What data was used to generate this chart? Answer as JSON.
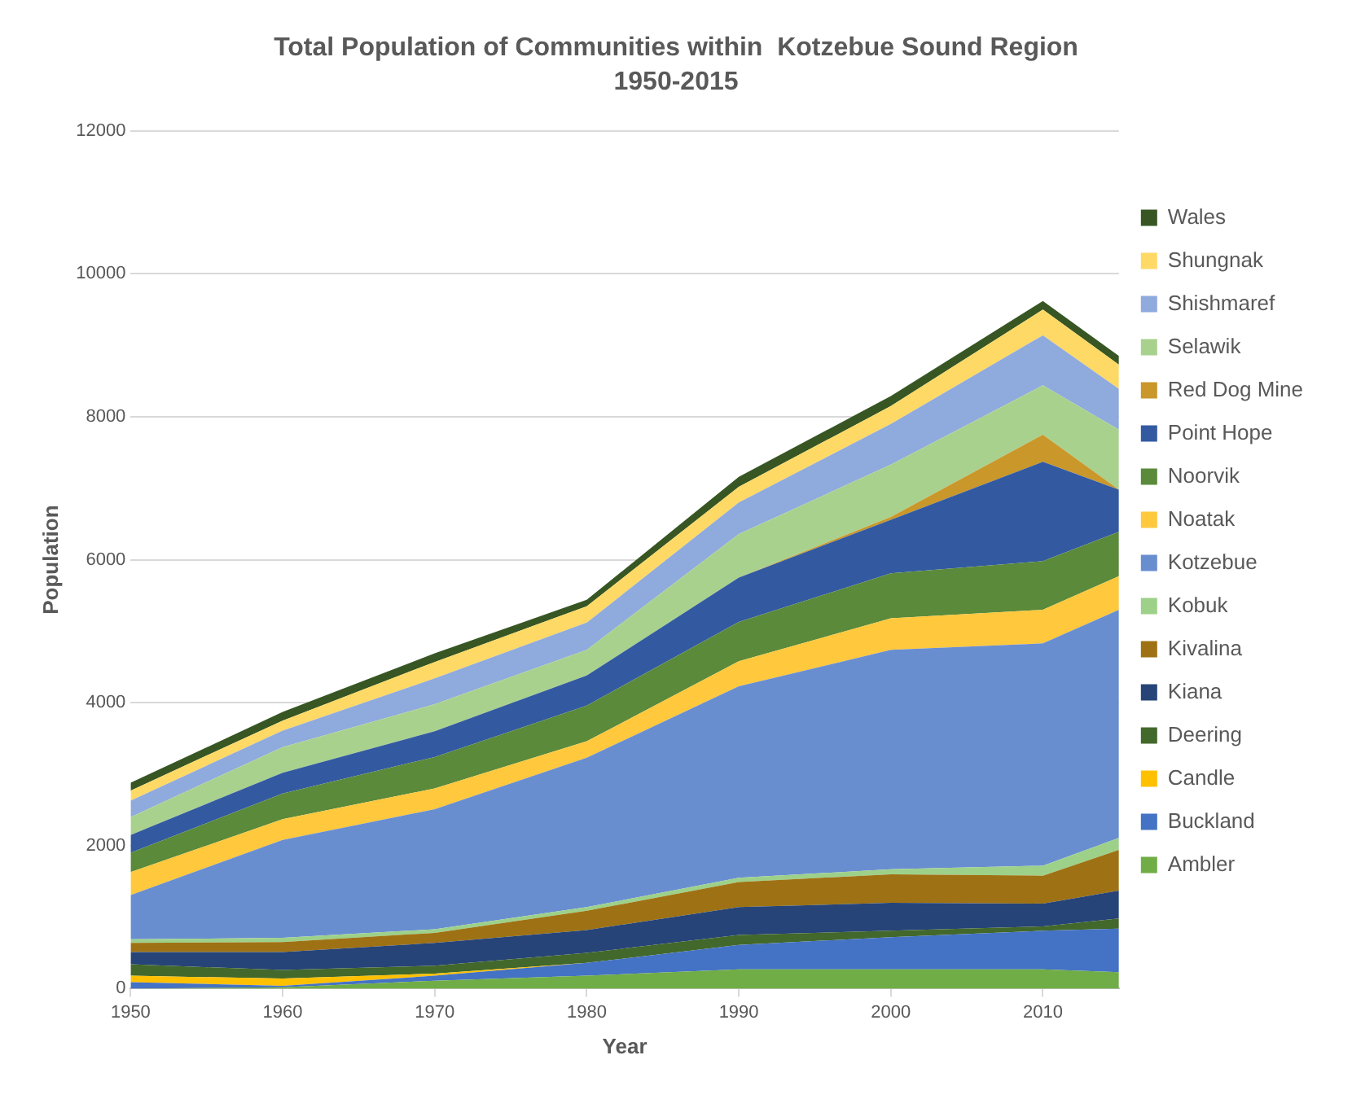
{
  "chart_data": {
    "type": "area",
    "title": "Total Population of Communities within  Kotzebue Sound Region",
    "subtitle": "1950-2015",
    "xlabel": "Year",
    "ylabel": "Population",
    "x": [
      1950,
      1960,
      1970,
      1980,
      1990,
      2000,
      2010,
      2015
    ],
    "xlim": [
      1950,
      2015
    ],
    "xticks": [
      1950,
      1960,
      1970,
      1980,
      1990,
      2000,
      2010
    ],
    "ylim": [
      0,
      12000
    ],
    "yticks": [
      0,
      2000,
      4000,
      6000,
      8000,
      10000,
      12000
    ],
    "stacked": true,
    "grid": "y",
    "legend": "right",
    "marker": "none",
    "series": [
      {
        "name": "Ambler",
        "color": "#70ad47",
        "values": [
          0,
          20,
          110,
          180,
          270,
          270,
          270,
          230
        ]
      },
      {
        "name": "Buckland",
        "color": "#4472c4",
        "values": [
          90,
          20,
          70,
          180,
          340,
          450,
          540,
          610
        ]
      },
      {
        "name": "Candle",
        "color": "#ffc000",
        "values": [
          90,
          100,
          30,
          0,
          0,
          0,
          0,
          0
        ]
      },
      {
        "name": "Deering",
        "color": "#43682b",
        "values": [
          160,
          120,
          110,
          140,
          140,
          90,
          60,
          140
        ]
      },
      {
        "name": "Kiana",
        "color": "#264478",
        "values": [
          170,
          250,
          320,
          320,
          390,
          390,
          320,
          390
        ]
      },
      {
        "name": "Kivalina",
        "color": "#9e7214",
        "values": [
          130,
          140,
          140,
          270,
          350,
          400,
          390,
          570
        ]
      },
      {
        "name": "Kobuk",
        "color": "#9dd18a",
        "values": [
          50,
          60,
          50,
          50,
          60,
          70,
          140,
          170
        ]
      },
      {
        "name": "Kotzebue",
        "color": "#698ed0",
        "values": [
          620,
          1370,
          1680,
          2090,
          2680,
          3070,
          3110,
          3190
        ]
      },
      {
        "name": "Noatak",
        "color": "#ffc83d",
        "values": [
          320,
          290,
          290,
          230,
          350,
          440,
          470,
          470
        ]
      },
      {
        "name": "Noorvik",
        "color": "#5a8a3a",
        "values": [
          270,
          360,
          440,
          500,
          550,
          630,
          680,
          620
        ]
      },
      {
        "name": "Point Hope",
        "color": "#335aa1",
        "values": [
          250,
          290,
          360,
          420,
          620,
          750,
          1390,
          590
        ]
      },
      {
        "name": "Red Dog Mine",
        "color": "#c9972a",
        "values": [
          0,
          0,
          0,
          0,
          0,
          40,
          380,
          0
        ]
      },
      {
        "name": "Selawik",
        "color": "#a9d18e",
        "values": [
          250,
          360,
          380,
          360,
          610,
          730,
          690,
          840
        ]
      },
      {
        "name": "Shishmaref",
        "color": "#8faadc",
        "values": [
          230,
          230,
          360,
          380,
          440,
          570,
          700,
          570
        ]
      },
      {
        "name": "Shungnak",
        "color": "#ffd966",
        "values": [
          140,
          140,
          230,
          230,
          220,
          250,
          360,
          340
        ]
      },
      {
        "name": "Wales",
        "color": "#375623",
        "values": [
          110,
          120,
          120,
          90,
          140,
          140,
          120,
          120
        ]
      }
    ]
  }
}
